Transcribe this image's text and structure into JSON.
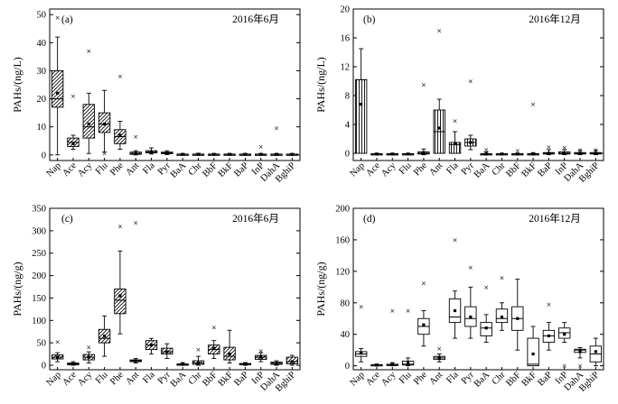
{
  "chart_data": [
    {
      "type": "box",
      "panel_label": "(a)",
      "title": "2016年6月",
      "ylabel": "PAHs/(ng/L)",
      "ylim": [
        -2,
        52
      ],
      "yticks": [
        0,
        10,
        20,
        30,
        40,
        50
      ],
      "categories": [
        "Nap",
        "Ace",
        "Acy",
        "Flu",
        "Phe",
        "Ant",
        "Fla",
        "Pyr",
        "BaA",
        "Chr",
        "BbF",
        "BkF",
        "BaP",
        "InP",
        "DahA",
        "BghiP"
      ],
      "hatch": "diag",
      "boxes": [
        {
          "min": 0,
          "q1": 17,
          "median": 20,
          "mean": 22,
          "q3": 30,
          "max": 42,
          "outliers": [
            49
          ]
        },
        {
          "min": 2,
          "q1": 3,
          "median": 4.5,
          "mean": 4,
          "q3": 6,
          "max": 7,
          "outliers": [
            21
          ]
        },
        {
          "min": 0.5,
          "q1": 6,
          "median": 10,
          "mean": 11,
          "q3": 18,
          "max": 22,
          "outliers": [
            37
          ]
        },
        {
          "min": 1,
          "q1": 8,
          "median": 11,
          "mean": 11,
          "q3": 15,
          "max": 23,
          "outliers": [
            0.5
          ]
        },
        {
          "min": 2,
          "q1": 4,
          "median": 6.5,
          "mean": 7,
          "q3": 9,
          "max": 12,
          "outliers": [
            28
          ]
        },
        {
          "min": 0,
          "q1": 0.2,
          "median": 0.5,
          "mean": 0.6,
          "q3": 1,
          "max": 1.5,
          "outliers": [
            6.5
          ]
        },
        {
          "min": 0.3,
          "q1": 0.7,
          "median": 1,
          "mean": 1,
          "q3": 1.5,
          "max": 2.5,
          "outliers": []
        },
        {
          "min": 0.1,
          "q1": 0.4,
          "median": 0.7,
          "mean": 0.7,
          "q3": 1,
          "max": 1.5,
          "outliers": []
        },
        {
          "min": 0,
          "q1": 0.1,
          "median": 0.2,
          "mean": 0.2,
          "q3": 0.3,
          "max": 0.5,
          "outliers": []
        },
        {
          "min": 0,
          "q1": 0.1,
          "median": 0.2,
          "mean": 0.2,
          "q3": 0.3,
          "max": 0.6,
          "outliers": []
        },
        {
          "min": 0,
          "q1": 0.1,
          "median": 0.2,
          "mean": 0.2,
          "q3": 0.3,
          "max": 0.5,
          "outliers": []
        },
        {
          "min": 0,
          "q1": 0.1,
          "median": 0.2,
          "mean": 0.2,
          "q3": 0.3,
          "max": 0.5,
          "outliers": []
        },
        {
          "min": 0,
          "q1": 0.1,
          "median": 0.2,
          "mean": 0.2,
          "q3": 0.3,
          "max": 0.5,
          "outliers": []
        },
        {
          "min": 0,
          "q1": 0.1,
          "median": 0.2,
          "mean": 0.2,
          "q3": 0.3,
          "max": 0.5,
          "outliers": [
            3
          ]
        },
        {
          "min": 0,
          "q1": 0.1,
          "median": 0.2,
          "mean": 0.2,
          "q3": 0.3,
          "max": 0.5,
          "outliers": [
            9.5
          ]
        },
        {
          "min": 0,
          "q1": 0.1,
          "median": 0.2,
          "mean": 0.2,
          "q3": 0.3,
          "max": 0.5,
          "outliers": []
        }
      ]
    },
    {
      "type": "box",
      "panel_label": "(b)",
      "title": "2016年12月",
      "ylabel": "PAHs/(ng/L)",
      "ylim": [
        -1,
        20
      ],
      "yticks": [
        0,
        4,
        8,
        12,
        16,
        20
      ],
      "categories": [
        "Nap",
        "Ace",
        "Acy",
        "Flu",
        "Phe",
        "Ant",
        "Fla",
        "Pyr",
        "BaA",
        "Chr",
        "BbF",
        "BkF",
        "BaP",
        "InP",
        "DahA",
        "BghiP"
      ],
      "hatch": "vert",
      "boxes": [
        {
          "min": 0,
          "q1": 0,
          "median": 10.2,
          "mean": 6.8,
          "q3": 10.2,
          "max": 14.5,
          "outliers": []
        },
        {
          "min": -0.2,
          "q1": -0.15,
          "median": -0.1,
          "mean": -0.1,
          "q3": -0.05,
          "max": 0,
          "outliers": []
        },
        {
          "min": -0.2,
          "q1": -0.15,
          "median": -0.1,
          "mean": -0.1,
          "q3": -0.05,
          "max": 0,
          "outliers": []
        },
        {
          "min": -0.2,
          "q1": -0.15,
          "median": -0.1,
          "mean": -0.1,
          "q3": -0.05,
          "max": 0,
          "outliers": []
        },
        {
          "min": -0.2,
          "q1": -0.1,
          "median": 0,
          "mean": 0.1,
          "q3": 0.2,
          "max": 0.6,
          "outliers": [
            9.5
          ]
        },
        {
          "min": 0,
          "q1": 0,
          "median": 3,
          "mean": 3.5,
          "q3": 6,
          "max": 7.5,
          "outliers": [
            17
          ]
        },
        {
          "min": 0,
          "q1": 0,
          "median": 1.2,
          "mean": 1.3,
          "q3": 1.5,
          "max": 3,
          "outliers": [
            4.5
          ]
        },
        {
          "min": 0.5,
          "q1": 1,
          "median": 1.5,
          "mean": 1.5,
          "q3": 2,
          "max": 2.5,
          "outliers": [
            10
          ]
        },
        {
          "min": -0.2,
          "q1": -0.15,
          "median": -0.1,
          "mean": -0.1,
          "q3": -0.05,
          "max": 0.2,
          "outliers": [
            0.5
          ]
        },
        {
          "min": -0.2,
          "q1": -0.15,
          "median": -0.1,
          "mean": -0.1,
          "q3": -0.05,
          "max": 0,
          "outliers": []
        },
        {
          "min": -0.2,
          "q1": -0.15,
          "median": -0.1,
          "mean": -0.1,
          "q3": -0.05,
          "max": 0,
          "outliers": [
            0.4
          ]
        },
        {
          "min": -0.2,
          "q1": -0.15,
          "median": -0.1,
          "mean": -0.1,
          "q3": -0.05,
          "max": 0.1,
          "outliers": [
            6.8
          ]
        },
        {
          "min": -0.2,
          "q1": -0.1,
          "median": 0,
          "mean": 0,
          "q3": 0.1,
          "max": 0.5,
          "outliers": [
            0.9
          ]
        },
        {
          "min": -0.2,
          "q1": -0.1,
          "median": 0,
          "mean": 0,
          "q3": 0.2,
          "max": 0.5,
          "outliers": [
            0.8
          ]
        },
        {
          "min": -0.2,
          "q1": -0.1,
          "median": 0,
          "mean": 0,
          "q3": 0.1,
          "max": 0.4,
          "outliers": [
            0.5
          ]
        },
        {
          "min": -0.2,
          "q1": -0.1,
          "median": 0,
          "mean": 0,
          "q3": 0.1,
          "max": 0.4,
          "outliers": [
            0.5
          ]
        }
      ]
    },
    {
      "type": "box",
      "panel_label": "(c)",
      "title": "2016年6月",
      "ylabel": "PAHs/(ng/g)",
      "ylim": [
        -10,
        350
      ],
      "yticks": [
        0,
        50,
        100,
        150,
        200,
        250,
        300,
        350
      ],
      "categories": [
        "Nap",
        "Ace",
        "Acy",
        "Flu",
        "Phe",
        "Ant",
        "Fla",
        "Pyr",
        "BaA",
        "Chr",
        "BbF",
        "BkF",
        "BaP",
        "InP",
        "DahA",
        "BghiP"
      ],
      "hatch": "diag",
      "boxes": [
        {
          "min": 8,
          "q1": 14,
          "median": 18,
          "mean": 18,
          "q3": 23,
          "max": 28,
          "outliers": [
            52
          ]
        },
        {
          "min": 0,
          "q1": 1,
          "median": 3,
          "mean": 3,
          "q3": 5,
          "max": 8,
          "outliers": []
        },
        {
          "min": 5,
          "q1": 12,
          "median": 18,
          "mean": 18,
          "q3": 24,
          "max": 30,
          "outliers": [
            40
          ]
        },
        {
          "min": 20,
          "q1": 50,
          "median": 60,
          "mean": 65,
          "q3": 80,
          "max": 110,
          "outliers": []
        },
        {
          "min": 70,
          "q1": 115,
          "median": 145,
          "mean": 155,
          "q3": 170,
          "max": 255,
          "outliers": [
            310
          ]
        },
        {
          "min": 5,
          "q1": 8,
          "median": 10,
          "mean": 10,
          "q3": 12,
          "max": 15,
          "outliers": [
            318
          ]
        },
        {
          "min": 25,
          "q1": 35,
          "median": 45,
          "mean": 45,
          "q3": 55,
          "max": 60,
          "outliers": []
        },
        {
          "min": 15,
          "q1": 25,
          "median": 30,
          "mean": 30,
          "q3": 38,
          "max": 48,
          "outliers": []
        },
        {
          "min": 0,
          "q1": 1,
          "median": 2,
          "mean": 2,
          "q3": 3,
          "max": 6,
          "outliers": []
        },
        {
          "min": 0,
          "q1": 2,
          "median": 5,
          "mean": 5,
          "q3": 10,
          "max": 20,
          "outliers": [
            35
          ]
        },
        {
          "min": 15,
          "q1": 25,
          "median": 35,
          "mean": 38,
          "q3": 45,
          "max": 55,
          "outliers": [
            85
          ]
        },
        {
          "min": 5,
          "q1": 12,
          "median": 20,
          "mean": 25,
          "q3": 40,
          "max": 78,
          "outliers": []
        },
        {
          "min": 0,
          "q1": 1,
          "median": 2,
          "mean": 2,
          "q3": 4,
          "max": 6,
          "outliers": []
        },
        {
          "min": 8,
          "q1": 13,
          "median": 18,
          "mean": 18,
          "q3": 22,
          "max": 28,
          "outliers": [
            32
          ]
        },
        {
          "min": 0,
          "q1": 2,
          "median": 4,
          "mean": 4,
          "q3": 7,
          "max": 10,
          "outliers": []
        },
        {
          "min": 0,
          "q1": 3,
          "median": 8,
          "mean": 8,
          "q3": 18,
          "max": 22,
          "outliers": []
        }
      ]
    },
    {
      "type": "box",
      "panel_label": "(d)",
      "title": "2016年12月",
      "ylabel": "PAHs/(ng/g)",
      "ylim": [
        -5,
        200
      ],
      "yticks": [
        0,
        40,
        80,
        120,
        160,
        200
      ],
      "categories": [
        "Nap",
        "Ace",
        "Acy",
        "Flu",
        "Phe",
        "Ant",
        "Fla",
        "Pyr",
        "BaA",
        "Chr",
        "BbF",
        "BkF",
        "BaP",
        "InP",
        "DahA",
        "BghiP"
      ],
      "hatch": "none",
      "boxes": [
        {
          "min": 5,
          "q1": 12,
          "median": 15,
          "mean": 16,
          "q3": 18,
          "max": 22,
          "outliers": [
            75
          ]
        },
        {
          "min": 0,
          "q1": 0.5,
          "median": 1,
          "mean": 1,
          "q3": 1.5,
          "max": 2,
          "outliers": []
        },
        {
          "min": 0,
          "q1": 0.5,
          "median": 1,
          "mean": 2,
          "q3": 2,
          "max": 4,
          "outliers": [
            70
          ]
        },
        {
          "min": 0,
          "q1": 1,
          "median": 2,
          "mean": 4,
          "q3": 6,
          "max": 10,
          "outliers": [
            70
          ]
        },
        {
          "min": 25,
          "q1": 40,
          "median": 50,
          "mean": 52,
          "q3": 60,
          "max": 70,
          "outliers": [
            105
          ]
        },
        {
          "min": 5,
          "q1": 8,
          "median": 10,
          "mean": 10,
          "q3": 12,
          "max": 15,
          "outliers": [
            22
          ]
        },
        {
          "min": 35,
          "q1": 55,
          "median": 62,
          "mean": 70,
          "q3": 85,
          "max": 95,
          "outliers": [
            160
          ]
        },
        {
          "min": 35,
          "q1": 50,
          "median": 60,
          "mean": 62,
          "q3": 75,
          "max": 100,
          "outliers": [
            125
          ]
        },
        {
          "min": 30,
          "q1": 38,
          "median": 48,
          "mean": 48,
          "q3": 55,
          "max": 65,
          "outliers": [
            100
          ]
        },
        {
          "min": 45,
          "q1": 55,
          "median": 60,
          "mean": 62,
          "q3": 72,
          "max": 80,
          "outliers": [
            112
          ]
        },
        {
          "min": 20,
          "q1": 45,
          "median": 60,
          "mean": 60,
          "q3": 75,
          "max": 110,
          "outliers": []
        },
        {
          "min": 0,
          "q1": 0,
          "median": 2,
          "mean": 15,
          "q3": 35,
          "max": 50,
          "outliers": []
        },
        {
          "min": 20,
          "q1": 30,
          "median": 38,
          "mean": 38,
          "q3": 45,
          "max": 55,
          "outliers": [
            78
          ]
        },
        {
          "min": 30,
          "q1": 35,
          "median": 42,
          "mean": 40,
          "q3": 48,
          "max": 55,
          "outliers": [
            0
          ]
        },
        {
          "min": 10,
          "q1": 17,
          "median": 20,
          "mean": 18,
          "q3": 21,
          "max": 23,
          "outliers": [
            0
          ]
        },
        {
          "min": 0,
          "q1": 5,
          "median": 15,
          "mean": 18,
          "q3": 25,
          "max": 35,
          "outliers": []
        }
      ]
    }
  ]
}
